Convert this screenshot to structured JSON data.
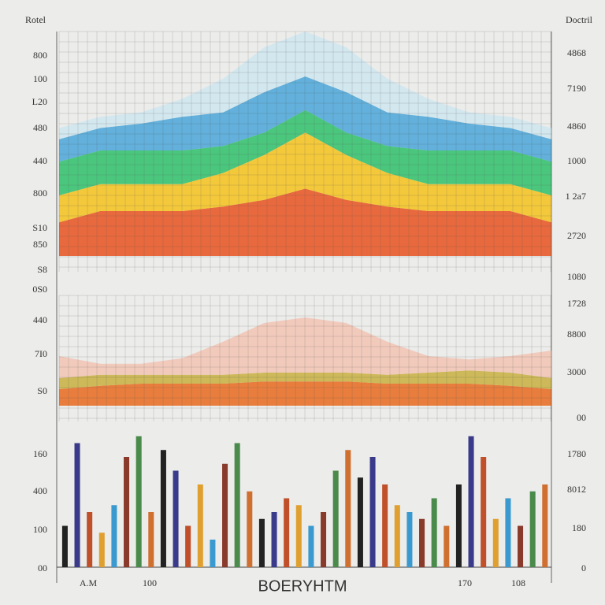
{
  "corner_labels": {
    "left": "Rotel",
    "right": "Doctril"
  },
  "left_axis_labels": [
    "800",
    "100",
    "L20",
    "480",
    "440",
    "800",
    "S10",
    "850",
    "S8",
    "0S0",
    "440",
    "7I0",
    "S0",
    "160",
    "400",
    "100",
    "00"
  ],
  "right_axis_labels": [
    "4868",
    "7190",
    "4860",
    "1000",
    "1 2a7",
    "2720",
    "1080",
    "1728",
    "8800",
    "3000",
    "00",
    "1780",
    "8012",
    "180",
    "0"
  ],
  "x_tick_labels": [
    "A.M",
    "100",
    "170",
    "108"
  ],
  "chart_data": [
    {
      "type": "area",
      "categories": [
        null,
        null,
        null,
        null,
        null,
        null,
        null,
        null,
        null,
        null,
        null,
        null,
        null
      ],
      "series": [
        {
          "color": "#e8521e",
          "values": [
            15,
            20,
            20,
            20,
            22,
            25,
            30,
            25,
            22,
            20,
            20,
            20,
            15
          ]
        },
        {
          "color": "#f4c21c",
          "values": [
            12,
            12,
            12,
            12,
            15,
            20,
            25,
            20,
            15,
            12,
            12,
            12,
            12
          ]
        },
        {
          "color": "#2fbf6a",
          "values": [
            15,
            15,
            15,
            15,
            12,
            10,
            10,
            10,
            12,
            15,
            15,
            15,
            15
          ]
        },
        {
          "color": "#4aa6d8",
          "values": [
            10,
            10,
            12,
            15,
            15,
            18,
            15,
            18,
            15,
            15,
            12,
            10,
            10
          ]
        },
        {
          "color": "#cfe6f0",
          "values": [
            5,
            5,
            5,
            8,
            15,
            20,
            20,
            20,
            15,
            8,
            5,
            5,
            5
          ]
        }
      ],
      "ylim": [
        0,
        100
      ]
    },
    {
      "type": "area",
      "categories": [
        null,
        null,
        null,
        null,
        null,
        null,
        null,
        null,
        null,
        null,
        null,
        null,
        null
      ],
      "series": [
        {
          "color": "#e86a1e",
          "values": [
            15,
            18,
            20,
            20,
            20,
            22,
            22,
            22,
            20,
            20,
            20,
            18,
            15
          ]
        },
        {
          "color": "#c8b040",
          "values": [
            10,
            10,
            8,
            8,
            8,
            8,
            8,
            8,
            8,
            10,
            12,
            12,
            10
          ]
        },
        {
          "color": "#f2c4b4",
          "values": [
            20,
            10,
            10,
            15,
            30,
            45,
            50,
            45,
            30,
            15,
            10,
            15,
            25
          ]
        }
      ],
      "ylim": [
        0,
        100
      ]
    },
    {
      "type": "bar",
      "xlabel": "BOERYHTM",
      "categories": [
        null,
        null,
        null,
        null,
        null,
        null,
        null,
        null,
        null,
        null,
        null,
        null,
        null,
        null,
        null,
        null,
        null,
        null,
        null,
        null,
        null,
        null,
        null,
        null,
        null,
        null,
        null,
        null,
        null,
        null,
        null,
        null,
        null,
        null,
        null,
        null,
        null,
        null,
        null,
        null
      ],
      "values": [
        30,
        90,
        40,
        25,
        45,
        80,
        95,
        40,
        85,
        70,
        30,
        60,
        20,
        75,
        90,
        55,
        35,
        40,
        50,
        45,
        30,
        40,
        70,
        85,
        65,
        80,
        60,
        45,
        40,
        35,
        50,
        30,
        60,
        95,
        80,
        35,
        50,
        30,
        55,
        60
      ],
      "colors": [
        "#222222",
        "#3a3a8a",
        "#c0502a",
        "#e0a030",
        "#3a9ad0",
        "#8a3a2a",
        "#4a8a4a",
        "#d07030",
        "#222222",
        "#3a3a8a",
        "#c0502a",
        "#e0a030",
        "#3a9ad0",
        "#8a3a2a",
        "#4a8a4a",
        "#d07030",
        "#222222",
        "#3a3a8a",
        "#c0502a",
        "#e0a030",
        "#3a9ad0",
        "#8a3a2a",
        "#4a8a4a",
        "#d07030",
        "#222222",
        "#3a3a8a",
        "#c0502a",
        "#e0a030",
        "#3a9ad0",
        "#8a3a2a",
        "#4a8a4a",
        "#d07030",
        "#222222",
        "#3a3a8a",
        "#c0502a",
        "#e0a030",
        "#3a9ad0",
        "#8a3a2a",
        "#4a8a4a",
        "#d07030"
      ],
      "ylim": [
        0,
        100
      ]
    }
  ]
}
